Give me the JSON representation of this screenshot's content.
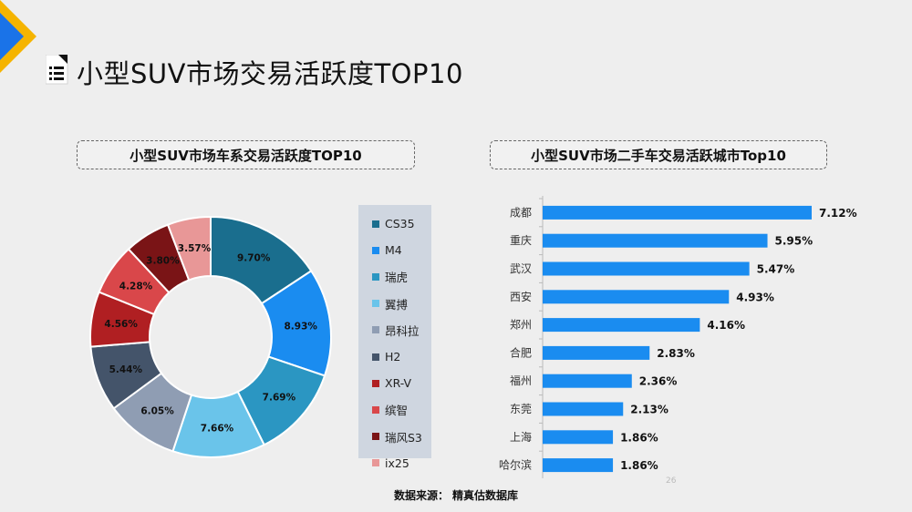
{
  "page": {
    "title": "小型SUV市场交易活跃度TOP10",
    "source_label": "数据来源：",
    "source_value": "精真估数据库",
    "page_number": "26"
  },
  "colors": {
    "logo_yellow": "#f5b400",
    "logo_blue": "#1a73e8",
    "bar": "#1a8cf0",
    "legend_bg": "#cfd6e0",
    "panel_border": "#666666"
  },
  "icons": {
    "corner": "brand-logo-icon",
    "title": "document-list-icon"
  },
  "chart_data": [
    {
      "type": "pie",
      "style": "donut",
      "title": "小型SUV市场车系交易活跃度TOP10",
      "categories": [
        "CS35",
        "M4",
        "瑞虎",
        "翼搏",
        "昂科拉",
        "H2",
        "XR-V",
        "缤智",
        "瑞风S3",
        "ix25"
      ],
      "values": [
        9.7,
        8.93,
        7.69,
        7.66,
        6.05,
        5.44,
        4.56,
        4.28,
        3.8,
        3.57
      ],
      "labels": [
        "9.70%",
        "8.93%",
        "7.69%",
        "7.66%",
        "6.05%",
        "5.44%",
        "4.56%",
        "4.28%",
        "3.80%",
        "3.57%"
      ],
      "colors": [
        "#1a6e8e",
        "#1a8cf0",
        "#2b96c2",
        "#6ac4ea",
        "#8f9db3",
        "#44546a",
        "#b01f22",
        "#d9474a",
        "#7a1416",
        "#e89797"
      ],
      "legend": "right"
    },
    {
      "type": "bar",
      "orientation": "horizontal",
      "title": "小型SUV市场二手车交易活跃城市Top10",
      "categories": [
        "成都",
        "重庆",
        "武汉",
        "西安",
        "郑州",
        "合肥",
        "福州",
        "东莞",
        "上海",
        "哈尔滨"
      ],
      "values": [
        7.12,
        5.95,
        5.47,
        4.93,
        4.16,
        2.83,
        2.36,
        2.13,
        1.86,
        1.86
      ],
      "labels": [
        "7.12%",
        "5.95%",
        "5.47%",
        "4.93%",
        "4.16%",
        "2.83%",
        "2.36%",
        "2.13%",
        "1.86%",
        "1.86%"
      ],
      "xlim": [
        0,
        7.12
      ],
      "grid": false
    }
  ]
}
